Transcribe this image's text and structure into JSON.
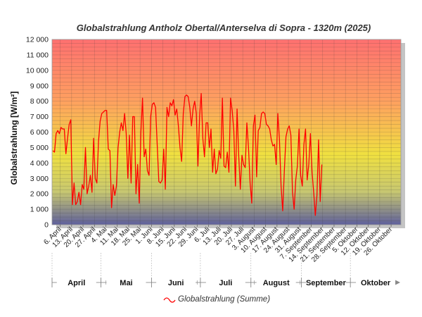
{
  "chart_data": {
    "type": "line",
    "title": "Globalstrahlung Antholz Obertal/Anterselva di Sopra - 1320m (2025)",
    "ylabel": "Globalstrahlung [W/m²]",
    "xlabel": "",
    "ylim": [
      0,
      12000
    ],
    "yticks": [
      0,
      1000,
      2000,
      3000,
      4000,
      5000,
      6000,
      7000,
      8000,
      9000,
      10000,
      11000,
      12000
    ],
    "ytick_labels": [
      "0",
      "1 000",
      "2 000",
      "3 000",
      "4 000",
      "5 000",
      "6 000",
      "7 000",
      "8 000",
      "9 000",
      "10 000",
      "11 000",
      "12 000"
    ],
    "x_start": "2025-04-01",
    "x_end": "2025-10-31",
    "xtick_labels": [
      "6. April",
      "13. April",
      "20. April",
      "27. April",
      "4. Mai",
      "11. Mai",
      "18. Mai",
      "25. Mai",
      "1. Juni",
      "8. Juni",
      "15. Juni",
      "22. Juni",
      "29. Juni",
      "6. Juli",
      "13. Juli",
      "20. Juli",
      "27. Juli",
      "3. August",
      "10. August",
      "17. August",
      "24. August",
      "31. August",
      "7. September",
      "14. September",
      "21. September",
      "28. September",
      "5. Oktober",
      "12. Oktober",
      "19. Oktober",
      "26. Oktober"
    ],
    "months": [
      "April",
      "Mai",
      "Juni",
      "Juli",
      "August",
      "September",
      "Oktober"
    ],
    "grid": true,
    "legend_position": "bottom",
    "series": [
      {
        "name": "Globalstrahlung (Summe)",
        "color": "#ff0000",
        "start_date": "2025-04-01",
        "values": [
          4800,
          4700,
          5900,
          6100,
          5900,
          6300,
          6200,
          6200,
          4600,
          5600,
          6500,
          6800,
          1300,
          2700,
          1300,
          1500,
          2100,
          1300,
          2600,
          2300,
          5000,
          2000,
          2500,
          3200,
          2100,
          5600,
          3000,
          2700,
          5400,
          6700,
          7200,
          7300,
          7400,
          7400,
          4900,
          4800,
          1100,
          2600,
          1900,
          2500,
          5000,
          6000,
          6600,
          6100,
          7200,
          5900,
          3000,
          5800,
          2700,
          7000,
          7000,
          2000,
          3900,
          1400,
          6000,
          8200,
          4400,
          4900,
          3500,
          3200,
          7000,
          7800,
          7900,
          7600,
          5200,
          2800,
          2700,
          2900,
          4900,
          2300,
          7600,
          7000,
          7900,
          7700,
          8100,
          7100,
          7500,
          6400,
          5000,
          4100,
          7200,
          8300,
          8400,
          8300,
          7600,
          6400,
          7500,
          8000,
          7200,
          3800,
          7000,
          8500,
          5600,
          4400,
          6600,
          6600,
          5000,
          6200,
          3400,
          4900,
          3300,
          3600,
          4800,
          4300,
          8200,
          3800,
          3700,
          4700,
          3400,
          8200,
          7400,
          6100,
          2500,
          7500,
          4500,
          2300,
          4500,
          3900,
          3700,
          6600,
          5000,
          2700,
          1400,
          6400,
          7100,
          3100,
          6100,
          6300,
          7200,
          7300,
          7200,
          6500,
          6400,
          6200,
          5500,
          5100,
          5200,
          3900,
          7200,
          5500,
          2500,
          900,
          3500,
          5700,
          6200,
          6400,
          5800,
          2100,
          1000,
          2900,
          3800,
          6200,
          3200,
          2500,
          5200,
          6200,
          2900,
          3900,
          5900,
          3400,
          2100,
          600,
          1900,
          5500,
          1500,
          3900
        ]
      }
    ]
  }
}
